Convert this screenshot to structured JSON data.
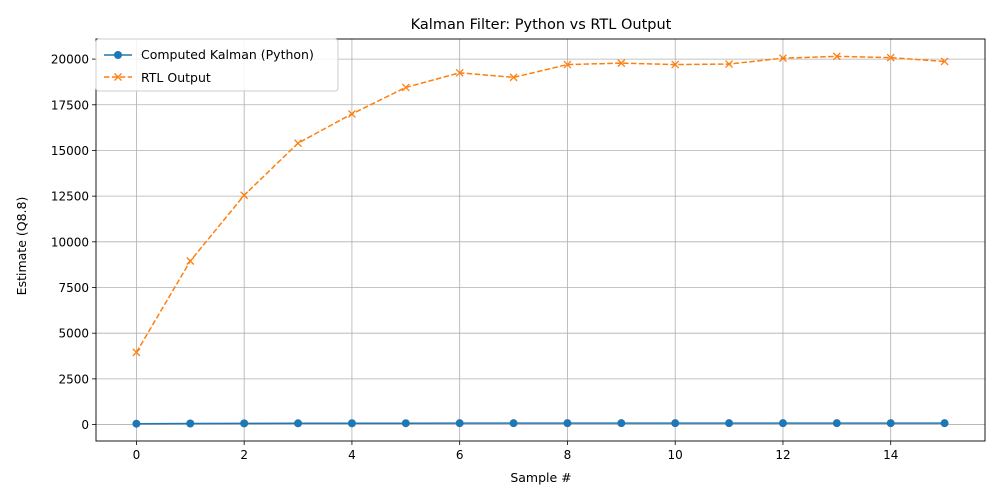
{
  "chart_data": {
    "type": "line",
    "title": "Kalman Filter: Python vs RTL Output",
    "xlabel": "Sample #",
    "ylabel": "Estimate (Q8.8)",
    "x": [
      0,
      1,
      2,
      3,
      4,
      5,
      6,
      7,
      8,
      9,
      10,
      11,
      12,
      13,
      14,
      15
    ],
    "xlim": [
      -0.75,
      15.75
    ],
    "ylim": [
      -900,
      21100
    ],
    "xticks": [
      0,
      2,
      4,
      6,
      8,
      10,
      12,
      14
    ],
    "yticks": [
      0,
      2500,
      5000,
      7500,
      10000,
      12500,
      15000,
      17500,
      20000
    ],
    "grid": true,
    "legend_position": "top-left",
    "series": [
      {
        "name": "Computed Kalman (Python)",
        "color": "#1f77b4",
        "line_style": "solid",
        "marker": "circle",
        "values": [
          45,
          58,
          65,
          70,
          72,
          74,
          75,
          75,
          76,
          76,
          76,
          76,
          77,
          77,
          77,
          77
        ]
      },
      {
        "name": "RTL Output",
        "color": "#ff7f0e",
        "line_style": "dashed",
        "marker": "x",
        "values": [
          3950,
          8950,
          12550,
          15400,
          17000,
          18450,
          19250,
          19000,
          19700,
          19780,
          19700,
          19730,
          20050,
          20150,
          20080,
          19870
        ]
      }
    ]
  }
}
